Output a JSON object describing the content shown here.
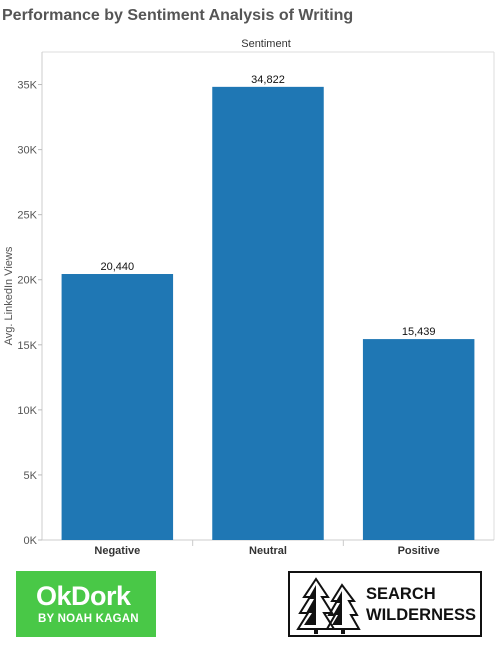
{
  "title": "Performance by Sentiment Analysis of Writing",
  "chart_data": {
    "type": "bar",
    "header": "Sentiment",
    "categories": [
      "Negative",
      "Neutral",
      "Positive"
    ],
    "values": [
      20440,
      34822,
      15439
    ],
    "value_labels": [
      "20,440",
      "34,822",
      "15,439"
    ],
    "ylabel": "Avg. LinkedIn Views",
    "ylim": [
      0,
      37500
    ],
    "yticks": [
      0,
      5000,
      10000,
      15000,
      20000,
      25000,
      30000,
      35000
    ],
    "ytick_labels": [
      "0K",
      "5K",
      "10K",
      "15K",
      "20K",
      "25K",
      "30K",
      "35K"
    ],
    "bar_color": "#1f77b4",
    "grid": false
  },
  "logos": {
    "okdork": {
      "line1": "OkDork",
      "line2": "BY NOAH KAGAN",
      "color": "#49c847"
    },
    "search_wilderness": {
      "line1": "SEARCH",
      "line2": "WILDERNESS",
      "icon": "pine-trees-icon"
    }
  }
}
